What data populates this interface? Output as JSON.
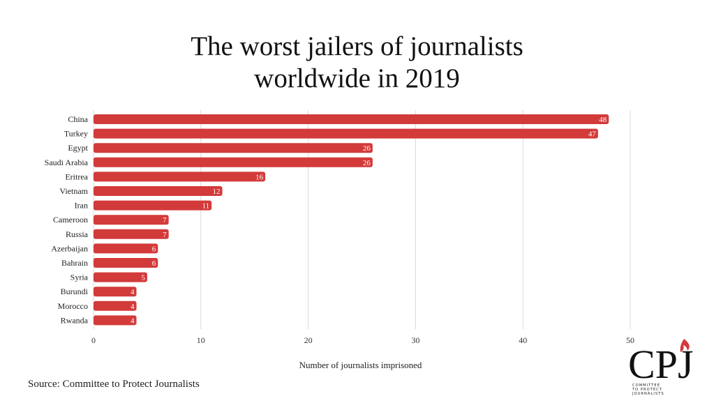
{
  "title_line1": "The worst jailers of journalists",
  "title_line2": "worldwide in 2019",
  "source": "Source: Committee to Protect Journalists",
  "logo": {
    "letters": "CPJ",
    "tagline": [
      "COMMITTEE",
      "TO PROTECT",
      "JOURNALISTS"
    ]
  },
  "chart_data": {
    "type": "bar",
    "orientation": "horizontal",
    "title": "The worst jailers of journalists worldwide in 2019",
    "xlabel": "Number of journalists imprisoned",
    "ylabel": "",
    "xlim": [
      0,
      50
    ],
    "xticks": [
      0,
      10,
      20,
      30,
      40,
      50
    ],
    "grid": true,
    "bar_color": "#d33a3a",
    "categories": [
      "China",
      "Turkey",
      "Egypt",
      "Saudi Arabia",
      "Eritrea",
      "Vietnam",
      "Iran",
      "Cameroon",
      "Russia",
      "Azerbaijan",
      "Bahrain",
      "Syria",
      "Burundi",
      "Morocco",
      "Rwanda"
    ],
    "values": [
      48,
      47,
      26,
      26,
      16,
      12,
      11,
      7,
      7,
      6,
      6,
      5,
      4,
      4,
      4
    ]
  }
}
